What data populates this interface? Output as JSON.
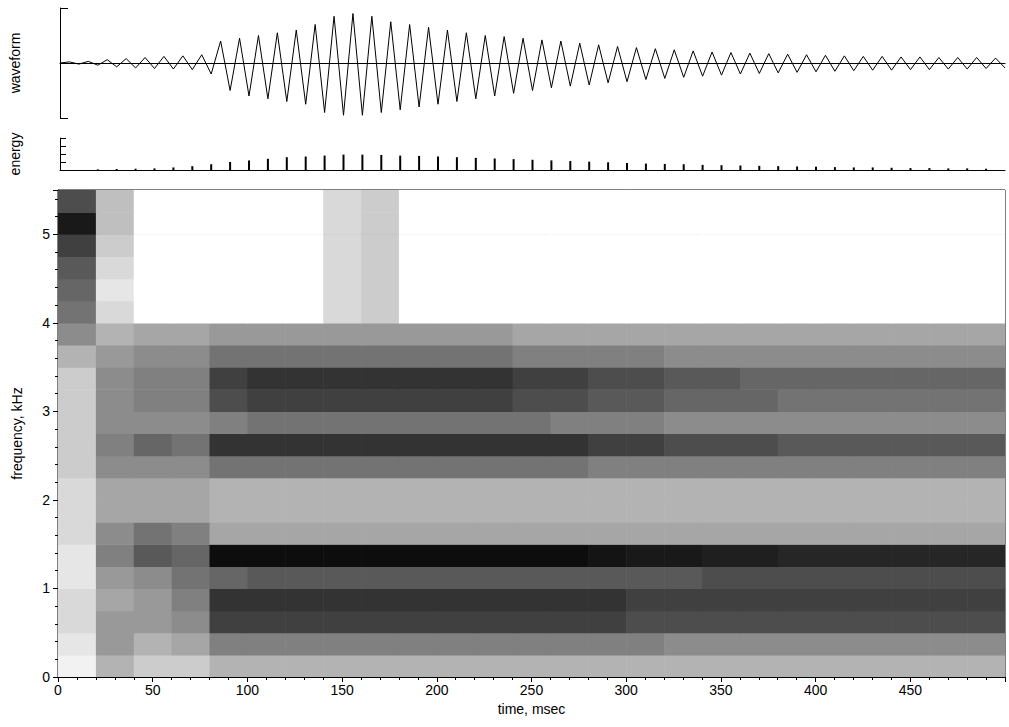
{
  "chart_data": [
    {
      "type": "line",
      "ylabel": "waveform",
      "color": "#000000",
      "x": [
        0,
        5,
        10,
        15,
        20,
        25,
        30,
        35,
        40,
        45,
        50,
        55,
        60,
        65,
        70,
        75,
        80,
        85,
        90,
        95,
        100,
        105,
        110,
        115,
        120,
        125,
        130,
        135,
        140,
        145,
        150,
        155,
        160,
        165,
        170,
        175,
        180,
        185,
        190,
        195,
        200,
        205,
        210,
        215,
        220,
        225,
        230,
        235,
        240,
        245,
        250,
        255,
        260,
        265,
        270,
        275,
        280,
        285,
        290,
        295,
        300,
        305,
        310,
        315,
        320,
        325,
        330,
        335,
        340,
        345,
        350,
        355,
        360,
        365,
        370,
        375,
        380,
        385,
        390,
        395,
        400,
        405,
        410,
        415,
        420,
        425,
        430,
        435,
        440,
        445,
        450,
        455,
        460,
        465,
        470,
        475,
        480,
        485,
        490,
        495,
        500
      ],
      "values": [
        0,
        0.02,
        -0.02,
        0.03,
        -0.04,
        0.06,
        -0.07,
        0.08,
        -0.09,
        0.1,
        -0.1,
        0.12,
        -0.11,
        0.13,
        -0.12,
        0.15,
        -0.2,
        0.4,
        -0.5,
        0.45,
        -0.6,
        0.5,
        -0.65,
        0.55,
        -0.7,
        0.6,
        -0.75,
        0.7,
        -0.9,
        0.85,
        -0.95,
        0.9,
        -0.95,
        0.85,
        -0.9,
        0.75,
        -0.85,
        0.7,
        -0.8,
        0.65,
        -0.75,
        0.6,
        -0.7,
        0.55,
        -0.65,
        0.5,
        -0.6,
        0.48,
        -0.55,
        0.45,
        -0.5,
        0.42,
        -0.45,
        0.4,
        -0.42,
        0.36,
        -0.4,
        0.33,
        -0.36,
        0.3,
        -0.34,
        0.28,
        -0.3,
        0.26,
        -0.28,
        0.24,
        -0.26,
        0.22,
        -0.24,
        0.2,
        -0.22,
        0.19,
        -0.2,
        0.18,
        -0.19,
        0.17,
        -0.18,
        0.16,
        -0.17,
        0.15,
        -0.16,
        0.14,
        -0.15,
        0.13,
        -0.14,
        0.12,
        -0.13,
        0.12,
        -0.13,
        0.11,
        -0.12,
        0.11,
        -0.12,
        0.1,
        -0.11,
        0.1,
        -0.11,
        0.1,
        -0.1,
        0.09,
        -0.09
      ],
      "xlim": [
        0,
        500
      ],
      "ylim": [
        -1,
        1
      ],
      "yticks": [
        -1,
        0,
        1
      ],
      "tick_labels": false
    },
    {
      "type": "bar",
      "ylabel": "energy",
      "color": "#000000",
      "x": [
        20,
        30,
        40,
        50,
        60,
        70,
        80,
        90,
        100,
        110,
        120,
        130,
        140,
        150,
        160,
        170,
        180,
        190,
        200,
        210,
        220,
        230,
        240,
        250,
        260,
        270,
        280,
        290,
        300,
        310,
        320,
        330,
        340,
        350,
        360,
        370,
        380,
        390,
        400,
        410,
        420,
        430,
        440,
        450,
        460,
        470,
        480,
        490
      ],
      "values": [
        0.02,
        0.03,
        0.04,
        0.05,
        0.08,
        0.12,
        0.18,
        0.25,
        0.3,
        0.35,
        0.4,
        0.42,
        0.45,
        0.48,
        0.48,
        0.47,
        0.45,
        0.44,
        0.42,
        0.4,
        0.38,
        0.36,
        0.34,
        0.32,
        0.3,
        0.28,
        0.26,
        0.24,
        0.22,
        0.2,
        0.19,
        0.18,
        0.16,
        0.15,
        0.14,
        0.13,
        0.12,
        0.11,
        0.1,
        0.09,
        0.08,
        0.08,
        0.07,
        0.06,
        0.06,
        0.05,
        0.05,
        0.04
      ],
      "xlim": [
        0,
        500
      ],
      "ylim": [
        0,
        1
      ],
      "yticks": [
        0,
        0.25,
        0.5,
        0.75,
        1
      ],
      "tick_labels": false
    },
    {
      "type": "heatmap",
      "xlabel": "time, msec",
      "ylabel": "frequency, kHz",
      "grid": true,
      "xlim": [
        0,
        500
      ],
      "xticks": [
        0,
        50,
        100,
        150,
        200,
        250,
        300,
        350,
        400,
        450
      ],
      "ylim": [
        0,
        5.5
      ],
      "yticks": [
        0,
        1,
        2,
        3,
        4,
        5
      ],
      "x_edges": [
        0,
        20,
        40,
        60,
        80,
        100,
        120,
        140,
        160,
        180,
        200,
        220,
        240,
        260,
        280,
        300,
        320,
        340,
        360,
        380,
        400,
        420,
        440,
        460,
        480,
        500
      ],
      "y_edges": [
        0,
        0.25,
        0.5,
        0.75,
        1,
        1.25,
        1.5,
        1.75,
        2,
        2.25,
        2.5,
        2.75,
        3,
        3.25,
        3.5,
        3.75,
        4,
        4.25,
        4.5,
        4.75,
        5,
        5.25,
        5.5
      ],
      "cell_range": [
        0,
        1
      ],
      "cells": [
        [
          0.05,
          0.3,
          0.2,
          0.2,
          0.3,
          0.3,
          0.3,
          0.3,
          0.3,
          0.3,
          0.3,
          0.3,
          0.3,
          0.3,
          0.3,
          0.3,
          0.3,
          0.3,
          0.3,
          0.3,
          0.3,
          0.3,
          0.3,
          0.3,
          0.3
        ],
        [
          0.1,
          0.4,
          0.3,
          0.35,
          0.5,
          0.5,
          0.5,
          0.5,
          0.5,
          0.5,
          0.5,
          0.5,
          0.5,
          0.5,
          0.5,
          0.5,
          0.45,
          0.45,
          0.45,
          0.45,
          0.45,
          0.45,
          0.45,
          0.45,
          0.45
        ],
        [
          0.15,
          0.4,
          0.4,
          0.45,
          0.75,
          0.75,
          0.75,
          0.75,
          0.75,
          0.75,
          0.75,
          0.75,
          0.75,
          0.75,
          0.75,
          0.7,
          0.7,
          0.7,
          0.7,
          0.7,
          0.7,
          0.7,
          0.7,
          0.7,
          0.7
        ],
        [
          0.15,
          0.35,
          0.4,
          0.5,
          0.8,
          0.8,
          0.8,
          0.8,
          0.8,
          0.8,
          0.8,
          0.8,
          0.8,
          0.8,
          0.8,
          0.75,
          0.75,
          0.75,
          0.75,
          0.75,
          0.75,
          0.75,
          0.75,
          0.75,
          0.75
        ],
        [
          0.1,
          0.4,
          0.45,
          0.55,
          0.6,
          0.65,
          0.65,
          0.65,
          0.65,
          0.65,
          0.65,
          0.65,
          0.65,
          0.65,
          0.65,
          0.65,
          0.65,
          0.7,
          0.7,
          0.7,
          0.7,
          0.7,
          0.7,
          0.7,
          0.7
        ],
        [
          0.1,
          0.5,
          0.65,
          0.6,
          0.95,
          0.95,
          0.95,
          0.95,
          0.95,
          0.95,
          0.95,
          0.95,
          0.95,
          0.95,
          0.92,
          0.9,
          0.9,
          0.88,
          0.88,
          0.85,
          0.85,
          0.85,
          0.85,
          0.85,
          0.85
        ],
        [
          0.15,
          0.45,
          0.55,
          0.5,
          0.35,
          0.35,
          0.35,
          0.35,
          0.35,
          0.35,
          0.35,
          0.35,
          0.35,
          0.35,
          0.35,
          0.35,
          0.35,
          0.35,
          0.35,
          0.35,
          0.35,
          0.35,
          0.35,
          0.35,
          0.35
        ],
        [
          0.15,
          0.35,
          0.35,
          0.35,
          0.3,
          0.3,
          0.3,
          0.3,
          0.3,
          0.3,
          0.3,
          0.3,
          0.3,
          0.3,
          0.3,
          0.3,
          0.3,
          0.3,
          0.3,
          0.3,
          0.3,
          0.3,
          0.3,
          0.3,
          0.3
        ],
        [
          0.15,
          0.35,
          0.35,
          0.35,
          0.3,
          0.3,
          0.3,
          0.3,
          0.3,
          0.3,
          0.3,
          0.3,
          0.3,
          0.3,
          0.3,
          0.3,
          0.3,
          0.3,
          0.3,
          0.3,
          0.3,
          0.3,
          0.3,
          0.3,
          0.3
        ],
        [
          0.2,
          0.45,
          0.45,
          0.45,
          0.55,
          0.55,
          0.55,
          0.55,
          0.55,
          0.55,
          0.55,
          0.55,
          0.55,
          0.55,
          0.5,
          0.5,
          0.5,
          0.5,
          0.5,
          0.5,
          0.5,
          0.5,
          0.5,
          0.5,
          0.5
        ],
        [
          0.2,
          0.5,
          0.6,
          0.55,
          0.8,
          0.8,
          0.8,
          0.8,
          0.8,
          0.8,
          0.8,
          0.8,
          0.8,
          0.8,
          0.75,
          0.75,
          0.7,
          0.7,
          0.7,
          0.65,
          0.65,
          0.65,
          0.65,
          0.65,
          0.65
        ],
        [
          0.2,
          0.45,
          0.45,
          0.45,
          0.5,
          0.55,
          0.55,
          0.55,
          0.55,
          0.55,
          0.55,
          0.55,
          0.55,
          0.5,
          0.5,
          0.5,
          0.45,
          0.45,
          0.45,
          0.45,
          0.45,
          0.45,
          0.45,
          0.45,
          0.45
        ],
        [
          0.2,
          0.45,
          0.5,
          0.5,
          0.7,
          0.75,
          0.75,
          0.75,
          0.75,
          0.75,
          0.75,
          0.75,
          0.7,
          0.7,
          0.65,
          0.65,
          0.6,
          0.6,
          0.6,
          0.55,
          0.55,
          0.55,
          0.55,
          0.55,
          0.55
        ],
        [
          0.2,
          0.45,
          0.5,
          0.5,
          0.75,
          0.8,
          0.8,
          0.8,
          0.8,
          0.8,
          0.8,
          0.8,
          0.75,
          0.75,
          0.7,
          0.7,
          0.65,
          0.65,
          0.6,
          0.6,
          0.6,
          0.6,
          0.6,
          0.6,
          0.6
        ],
        [
          0.3,
          0.4,
          0.45,
          0.45,
          0.55,
          0.55,
          0.55,
          0.55,
          0.55,
          0.55,
          0.55,
          0.55,
          0.5,
          0.5,
          0.5,
          0.5,
          0.45,
          0.45,
          0.45,
          0.45,
          0.45,
          0.45,
          0.45,
          0.45,
          0.45
        ],
        [
          0.45,
          0.3,
          0.35,
          0.35,
          0.4,
          0.4,
          0.4,
          0.4,
          0.4,
          0.4,
          0.4,
          0.4,
          0.35,
          0.35,
          0.35,
          0.35,
          0.35,
          0.35,
          0.35,
          0.35,
          0.35,
          0.35,
          0.35,
          0.35,
          0.35
        ],
        [
          0.55,
          0.15,
          0,
          0,
          0,
          0,
          0,
          0.15,
          0.2,
          0,
          0,
          0,
          0,
          0,
          0,
          0,
          0,
          0,
          0,
          0,
          0,
          0,
          0,
          0,
          0
        ],
        [
          0.6,
          0.1,
          0,
          0,
          0,
          0,
          0,
          0.15,
          0.2,
          0,
          0,
          0,
          0,
          0,
          0,
          0,
          0,
          0,
          0,
          0,
          0,
          0,
          0,
          0,
          0
        ],
        [
          0.65,
          0.15,
          0,
          0,
          0,
          0,
          0,
          0.15,
          0.2,
          0,
          0,
          0,
          0,
          0,
          0,
          0,
          0,
          0,
          0,
          0,
          0,
          0,
          0,
          0,
          0
        ],
        [
          0.75,
          0.2,
          0,
          0,
          0,
          0,
          0,
          0.15,
          0.2,
          0,
          0,
          0,
          0,
          0,
          0,
          0,
          0,
          0,
          0,
          0,
          0,
          0,
          0,
          0,
          0
        ],
        [
          0.9,
          0.25,
          0,
          0,
          0,
          0,
          0,
          0.15,
          0.2,
          0,
          0,
          0,
          0,
          0,
          0,
          0,
          0,
          0,
          0,
          0,
          0,
          0,
          0,
          0,
          0
        ],
        [
          0.7,
          0.25,
          0,
          0,
          0,
          0,
          0,
          0.15,
          0.2,
          0,
          0,
          0,
          0,
          0,
          0,
          0,
          0,
          0,
          0,
          0,
          0,
          0,
          0,
          0,
          0
        ]
      ]
    }
  ]
}
